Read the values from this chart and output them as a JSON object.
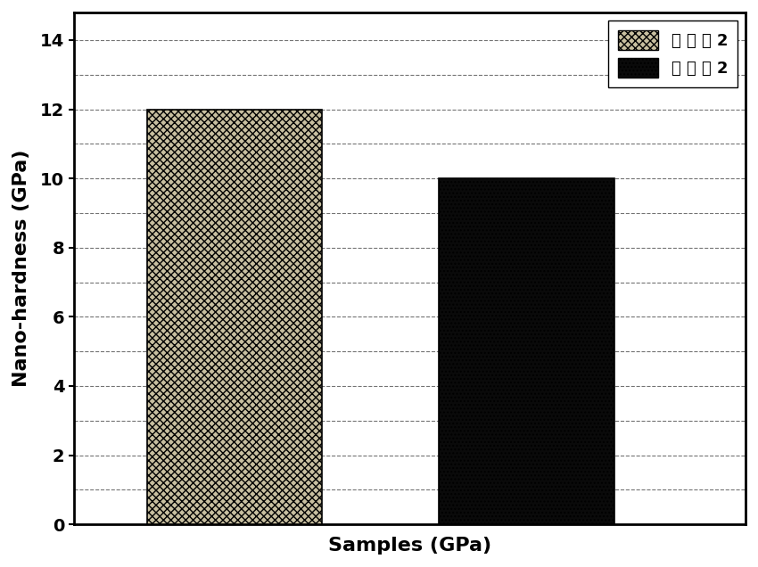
{
  "values": [
    12,
    10
  ],
  "bar_positions": [
    1,
    2
  ],
  "bar_width": 0.6,
  "ylabel": "Nano-hardness (GPa)",
  "xlabel": "Samples (GPa)",
  "ylim": [
    0,
    14.8
  ],
  "yticks": [
    0,
    2,
    4,
    6,
    8,
    10,
    12,
    14
  ],
  "grid_every": 1,
  "grid_max": 14,
  "bar_facecolor1": "#c8bfa0",
  "bar_facecolor2": "#0a0a0a",
  "bar_edgecolor": "#000000",
  "grid_color": "#000000",
  "grid_linestyle": "--",
  "grid_alpha": 0.55,
  "grid_linewidth": 0.8,
  "legend_label1": "实 施 例 2",
  "legend_label2": "对 比 例 2",
  "ylabel_fontsize": 16,
  "xlabel_fontsize": 16,
  "tick_fontsize": 14,
  "legend_fontsize": 13,
  "background_color": "#ffffff",
  "spine_linewidth": 2.0,
  "xlim": [
    0.45,
    2.75
  ]
}
